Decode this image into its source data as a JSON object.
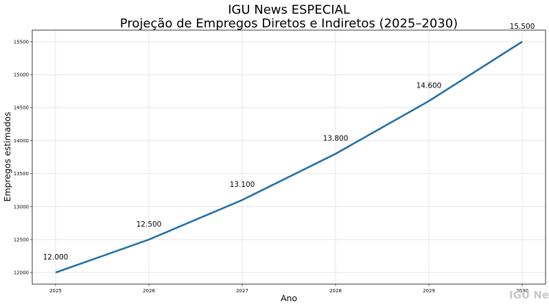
{
  "title_line1": "IGU News ESPECIAL",
  "title_line2": "Projeção de Empregos Diretos e Indiretos (2025–2030)",
  "watermark": "IGU Ne",
  "chart_data": {
    "type": "line",
    "x": [
      2025,
      2026,
      2027,
      2028,
      2029,
      2030
    ],
    "series": [
      {
        "values": [
          12000,
          12500,
          13100,
          13800,
          14600,
          15500
        ],
        "color": "#1f6fa8"
      }
    ],
    "data_labels": [
      "12.000",
      "12.500",
      "13.100",
      "13.800",
      "14.600",
      "15.500"
    ],
    "xlabel": "Ano",
    "ylabel": "Empregos estimados",
    "x_ticks": [
      "2025",
      "2026",
      "2027",
      "2028",
      "2029",
      "2030"
    ],
    "y_ticks": [
      12000,
      12500,
      13000,
      13500,
      14000,
      14500,
      15000,
      15500
    ],
    "xlim": [
      2024.75,
      2030.25
    ],
    "ylim": [
      11825,
      15675
    ],
    "grid": true,
    "legend": "none"
  }
}
